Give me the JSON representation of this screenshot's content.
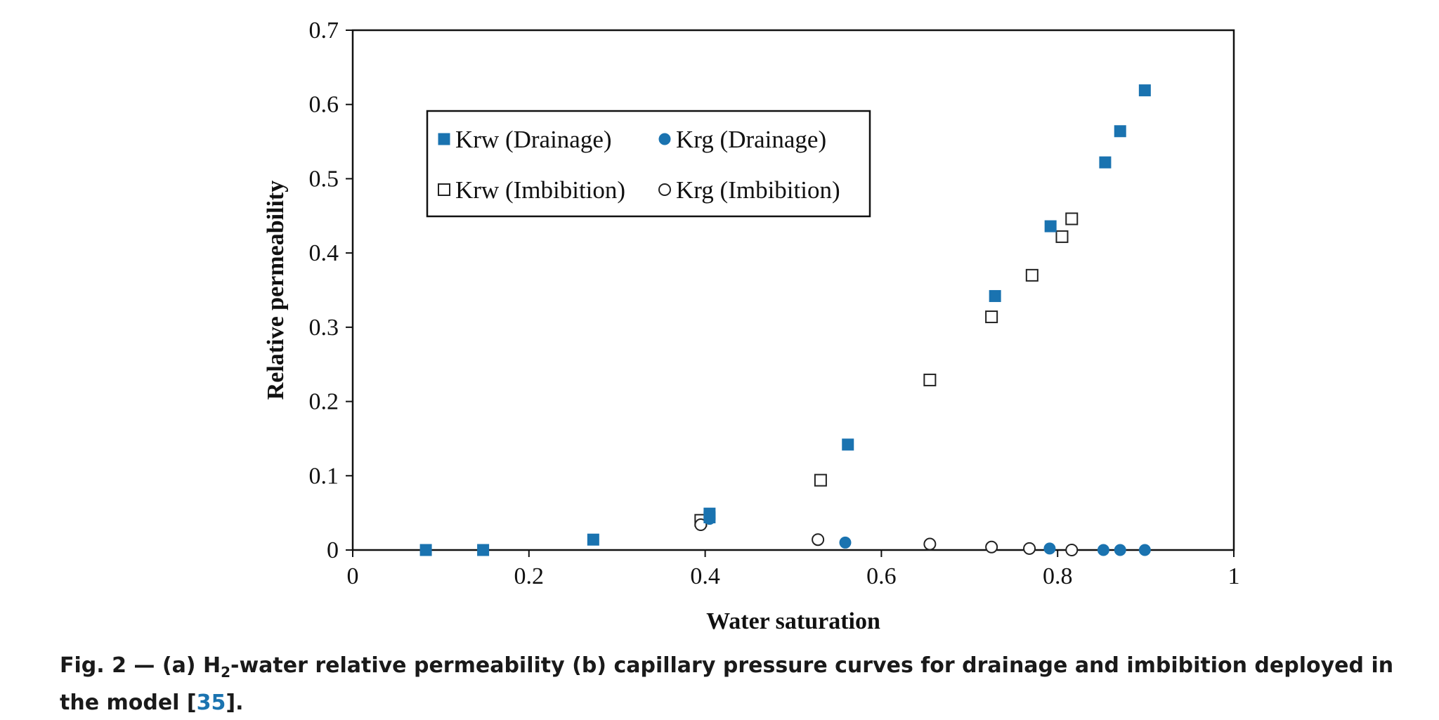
{
  "chart_data": {
    "type": "scatter",
    "title": "",
    "xlabel": "Water saturation",
    "ylabel": "Relative permeability",
    "xlim": [
      0,
      1
    ],
    "ylim": [
      0,
      0.7
    ],
    "x_ticks": [
      "0",
      "0.2",
      "0.4",
      "0.6",
      "0.8",
      "1"
    ],
    "y_ticks": [
      "0",
      "0.1",
      "0.2",
      "0.3",
      "0.4",
      "0.5",
      "0.6",
      "0.7"
    ],
    "legend_position": "upper-left",
    "series": [
      {
        "name": "Krw (Drainage)",
        "marker": "square",
        "filled": true,
        "color": "#1a73b0",
        "x": [
          0.083,
          0.148,
          0.273,
          0.405,
          0.405,
          0.562,
          0.729,
          0.792,
          0.854,
          0.871,
          0.899
        ],
        "y": [
          0.0,
          0.0,
          0.014,
          0.049,
          0.044,
          0.142,
          0.342,
          0.436,
          0.522,
          0.564,
          0.619
        ]
      },
      {
        "name": "Krg (Drainage)",
        "marker": "circle",
        "filled": true,
        "color": "#1a73b0",
        "x": [
          0.405,
          0.559,
          0.791,
          0.852,
          0.871,
          0.899
        ],
        "y": [
          0.042,
          0.01,
          0.002,
          0.0,
          0.0,
          0.0
        ]
      },
      {
        "name": "Krw (Imbibition)",
        "marker": "square",
        "filled": false,
        "color": "#222222",
        "x": [
          0.395,
          0.531,
          0.655,
          0.725,
          0.771,
          0.805,
          0.816
        ],
        "y": [
          0.04,
          0.094,
          0.229,
          0.314,
          0.37,
          0.422,
          0.446
        ]
      },
      {
        "name": "Krg (Imbibition)",
        "marker": "circle",
        "filled": false,
        "color": "#222222",
        "x": [
          0.395,
          0.528,
          0.655,
          0.725,
          0.768,
          0.816
        ],
        "y": [
          0.034,
          0.014,
          0.008,
          0.004,
          0.002,
          0.0
        ]
      }
    ]
  },
  "caption": {
    "prefix": "Fig. 2 — (a) H",
    "subscript": "2",
    "suffix": "-water relative permeability (b) capillary pressure curves for drainage and imbibition deployed in the model [",
    "ref": "35",
    "end": "]."
  }
}
